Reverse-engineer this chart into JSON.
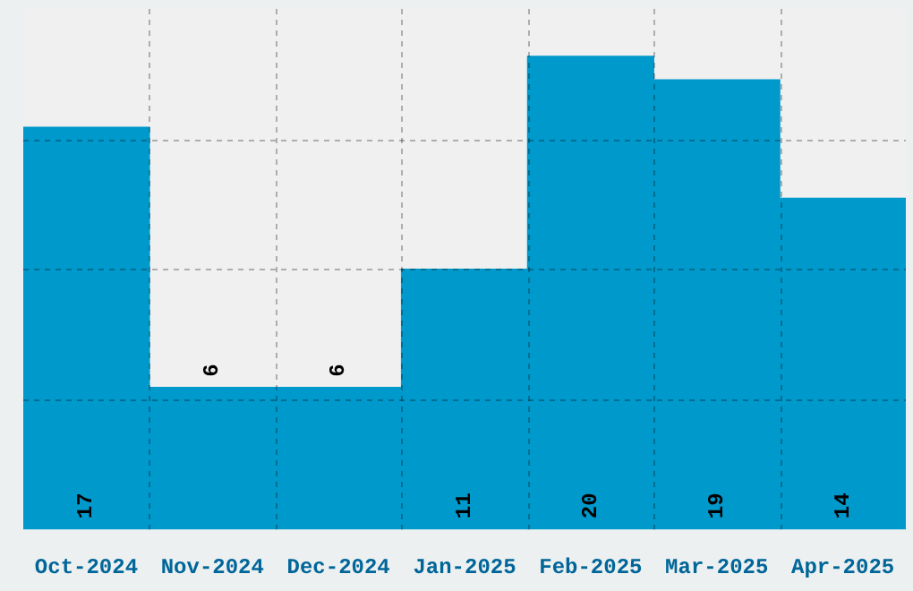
{
  "chart_data": {
    "type": "bar",
    "categories": [
      "Oct-2024",
      "Nov-2024",
      "Dec-2024",
      "Jan-2025",
      "Feb-2025",
      "Mar-2025",
      "Apr-2025"
    ],
    "values": [
      17,
      6,
      6,
      11,
      20,
      19,
      14
    ],
    "color": "#0099cc",
    "ylim": [
      0,
      22
    ],
    "tick_labels": "x",
    "grid": true,
    "data_labels": true
  }
}
